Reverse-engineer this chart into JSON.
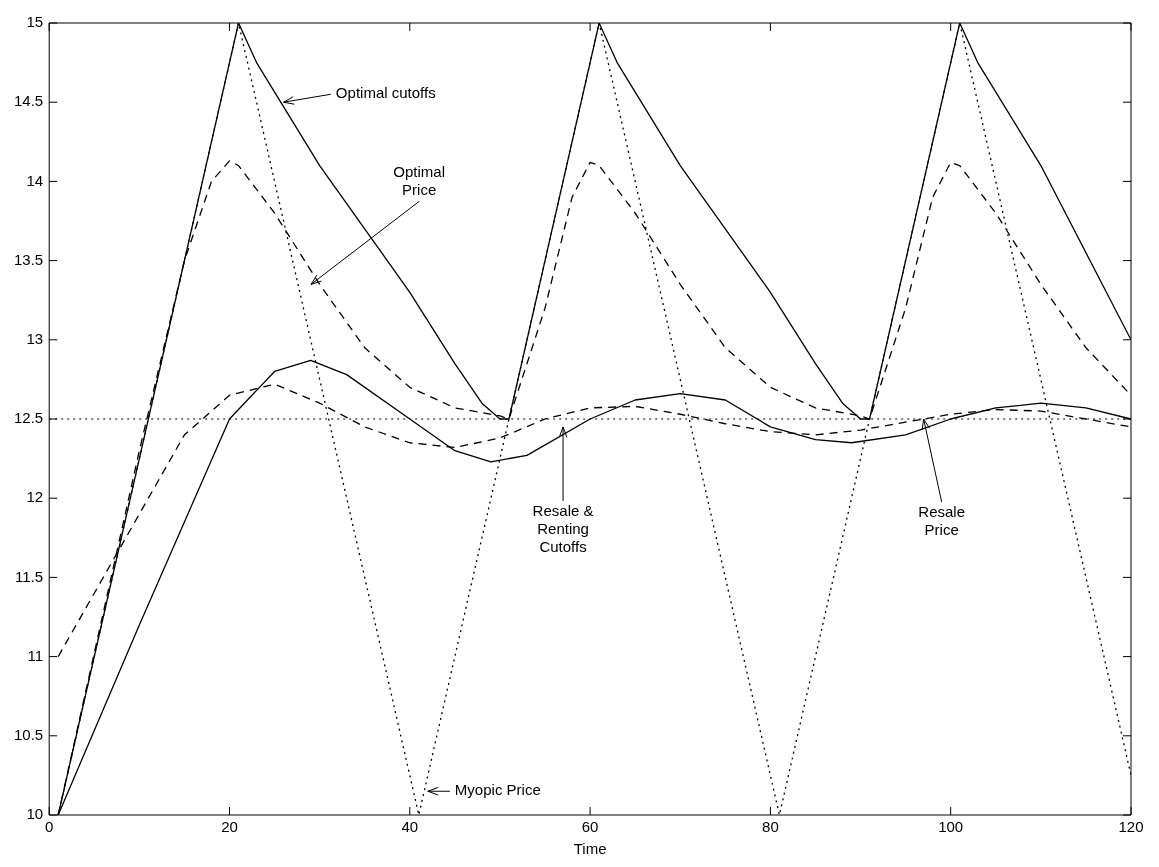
{
  "chart_data": {
    "type": "line",
    "xlabel": "Time",
    "xlim": [
      0,
      120
    ],
    "xticks": [
      0,
      20,
      40,
      60,
      80,
      100,
      120
    ],
    "ylim": [
      10,
      15
    ],
    "yticks": [
      10,
      10.5,
      11,
      11.5,
      12,
      12.5,
      13,
      13.5,
      14,
      14.5,
      15
    ],
    "grid": false,
    "legend": false,
    "marker": "none",
    "series": [
      {
        "color": "#000000",
        "line_style": "solid",
        "x": [
          1,
          21,
          23,
          30,
          40,
          45,
          48,
          50,
          51,
          61,
          63,
          70,
          80,
          85,
          88,
          90,
          91,
          101,
          103,
          110,
          120
        ],
        "values": [
          10,
          15,
          14.75,
          14.1,
          13.3,
          12.85,
          12.6,
          12.5,
          12.5,
          15,
          14.75,
          14.1,
          13.3,
          12.85,
          12.6,
          12.5,
          12.5,
          15,
          14.75,
          14.1,
          13
        ]
      },
      {
        "color": "#000000",
        "line_style": "dashed",
        "x": [
          1,
          10,
          15,
          18,
          20,
          21,
          25,
          30,
          35,
          40,
          45,
          50,
          51,
          55,
          58,
          60,
          61,
          65,
          70,
          75,
          80,
          85,
          90,
          91,
          95,
          98,
          100,
          101,
          105,
          110,
          115,
          120
        ],
        "values": [
          10,
          12.3,
          13.5,
          14,
          14.13,
          14.1,
          13.8,
          13.35,
          12.95,
          12.7,
          12.57,
          12.52,
          12.5,
          13.2,
          13.9,
          14.12,
          14.1,
          13.8,
          13.35,
          12.95,
          12.7,
          12.57,
          12.52,
          12.5,
          13.2,
          13.9,
          14.12,
          14.1,
          13.8,
          13.35,
          12.95,
          12.65
        ]
      },
      {
        "color": "#000000",
        "line_style": "solid",
        "x": [
          1,
          10,
          20,
          25,
          29,
          33,
          40,
          45,
          49,
          53,
          60,
          65,
          70,
          75,
          80,
          85,
          89,
          95,
          100,
          105,
          110,
          115,
          120
        ],
        "values": [
          10,
          11.2,
          12.5,
          12.8,
          12.87,
          12.78,
          12.5,
          12.3,
          12.23,
          12.27,
          12.5,
          12.62,
          12.66,
          12.62,
          12.45,
          12.37,
          12.35,
          12.4,
          12.5,
          12.57,
          12.6,
          12.57,
          12.5
        ]
      },
      {
        "color": "#000000",
        "line_style": "dashed",
        "x": [
          1,
          5,
          10,
          15,
          20,
          25,
          30,
          35,
          40,
          45,
          50,
          55,
          60,
          65,
          70,
          75,
          80,
          85,
          90,
          95,
          100,
          105,
          110,
          115,
          120
        ],
        "values": [
          11,
          11.4,
          11.9,
          12.4,
          12.65,
          12.72,
          12.6,
          12.45,
          12.35,
          12.32,
          12.38,
          12.5,
          12.57,
          12.58,
          12.53,
          12.47,
          12.42,
          12.4,
          12.43,
          12.48,
          12.53,
          12.56,
          12.55,
          12.5,
          12.45
        ]
      },
      {
        "color": "#000000",
        "line_style": "dotted",
        "x": [
          1,
          21,
          41,
          61,
          81,
          101,
          120
        ],
        "values": [
          10,
          15,
          10,
          15,
          10,
          15,
          10.25
        ]
      }
    ],
    "ref_lines": [
      {
        "axis": "y",
        "value": 12.5,
        "color": "#000000",
        "line_style": "dotted"
      }
    ],
    "annotations": [
      {
        "text": "Optimal cutoffs",
        "x": 26,
        "y": 14.5
      },
      "Optimal\nPrice",
      "Resale &\nRenting\nCutoffs",
      {
        "text": "Resale\nPrice",
        "x": 97,
        "y": 12.5
      },
      "Myopic Price"
    ]
  }
}
